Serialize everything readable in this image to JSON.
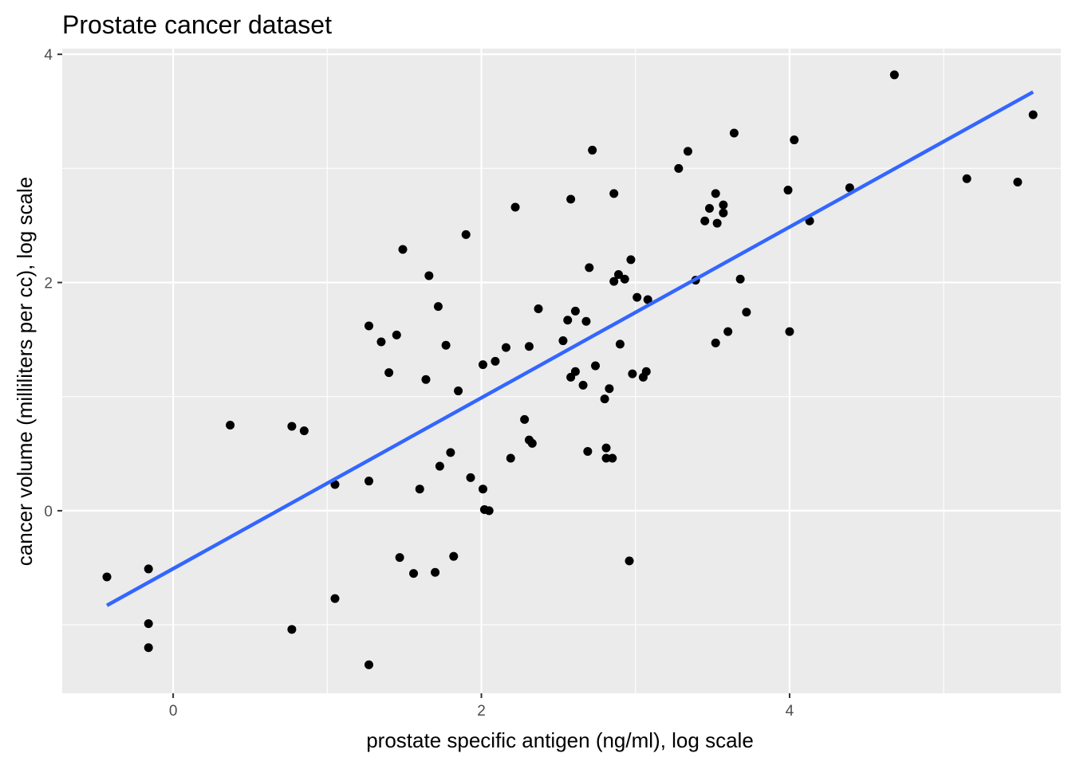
{
  "chart_data": {
    "type": "scatter",
    "title": "Prostate cancer dataset",
    "xlabel": "prostate specific antigen (ng/ml), log scale",
    "ylabel": "cancer volume (milliliters per cc), log scale",
    "xlim": [
      -0.72,
      5.76
    ],
    "ylim": [
      -1.6,
      4.05
    ],
    "x_ticks": [
      0,
      2,
      4
    ],
    "y_ticks": [
      0,
      2,
      4
    ],
    "x_minor": [
      1,
      3,
      5
    ],
    "y_minor": [
      -1,
      1,
      3
    ],
    "grid": true,
    "point_color": "#000000",
    "line_color": "#3366FF",
    "panel_bg": "#EBEBEB",
    "fit_line": {
      "x": [
        -0.43,
        5.58
      ],
      "y": [
        -0.83,
        3.67
      ]
    },
    "points": [
      [
        -0.43,
        -0.58
      ],
      [
        -0.16,
        -0.51
      ],
      [
        -0.16,
        -0.99
      ],
      [
        -0.16,
        -1.2
      ],
      [
        0.37,
        0.75
      ],
      [
        0.77,
        0.74
      ],
      [
        0.77,
        -1.04
      ],
      [
        0.85,
        0.7
      ],
      [
        1.05,
        0.23
      ],
      [
        1.05,
        -0.77
      ],
      [
        1.27,
        1.62
      ],
      [
        1.27,
        0.26
      ],
      [
        1.27,
        -1.35
      ],
      [
        1.35,
        1.48
      ],
      [
        1.4,
        1.21
      ],
      [
        1.45,
        1.54
      ],
      [
        1.47,
        -0.41
      ],
      [
        1.49,
        2.29
      ],
      [
        1.56,
        -0.55
      ],
      [
        1.6,
        0.19
      ],
      [
        1.64,
        1.15
      ],
      [
        1.66,
        2.06
      ],
      [
        1.7,
        -0.54
      ],
      [
        1.72,
        1.79
      ],
      [
        1.73,
        0.39
      ],
      [
        1.77,
        1.45
      ],
      [
        1.8,
        0.51
      ],
      [
        1.82,
        -0.4
      ],
      [
        1.85,
        1.05
      ],
      [
        1.9,
        2.42
      ],
      [
        1.93,
        0.29
      ],
      [
        2.01,
        1.28
      ],
      [
        2.01,
        0.19
      ],
      [
        2.02,
        0.01
      ],
      [
        2.05,
        0.0
      ],
      [
        2.09,
        1.31
      ],
      [
        2.16,
        1.43
      ],
      [
        2.19,
        0.46
      ],
      [
        2.22,
        2.66
      ],
      [
        2.28,
        0.8
      ],
      [
        2.31,
        1.44
      ],
      [
        2.31,
        0.62
      ],
      [
        2.33,
        0.59
      ],
      [
        2.37,
        1.77
      ],
      [
        2.53,
        1.49
      ],
      [
        2.56,
        1.67
      ],
      [
        2.58,
        2.73
      ],
      [
        2.58,
        1.17
      ],
      [
        2.61,
        1.22
      ],
      [
        2.61,
        1.75
      ],
      [
        2.66,
        1.1
      ],
      [
        2.68,
        1.66
      ],
      [
        2.69,
        0.52
      ],
      [
        2.7,
        2.13
      ],
      [
        2.72,
        3.16
      ],
      [
        2.74,
        1.27
      ],
      [
        2.8,
        0.98
      ],
      [
        2.81,
        0.46
      ],
      [
        2.81,
        0.55
      ],
      [
        2.83,
        1.07
      ],
      [
        2.85,
        0.46
      ],
      [
        2.86,
        2.01
      ],
      [
        2.86,
        2.78
      ],
      [
        2.89,
        2.07
      ],
      [
        2.9,
        1.46
      ],
      [
        2.93,
        2.03
      ],
      [
        2.96,
        -0.44
      ],
      [
        2.97,
        2.2
      ],
      [
        2.98,
        1.2
      ],
      [
        3.01,
        1.87
      ],
      [
        3.05,
        1.17
      ],
      [
        3.07,
        1.22
      ],
      [
        3.08,
        1.85
      ],
      [
        3.28,
        3.0
      ],
      [
        3.34,
        3.15
      ],
      [
        3.39,
        2.02
      ],
      [
        3.45,
        2.54
      ],
      [
        3.48,
        2.65
      ],
      [
        3.52,
        2.78
      ],
      [
        3.52,
        1.47
      ],
      [
        3.53,
        2.52
      ],
      [
        3.57,
        2.61
      ],
      [
        3.57,
        2.68
      ],
      [
        3.6,
        1.57
      ],
      [
        3.64,
        3.31
      ],
      [
        3.68,
        2.03
      ],
      [
        3.72,
        1.74
      ],
      [
        3.99,
        2.81
      ],
      [
        4.0,
        1.57
      ],
      [
        4.03,
        3.25
      ],
      [
        4.13,
        2.54
      ],
      [
        4.39,
        2.83
      ],
      [
        4.68,
        3.82
      ],
      [
        5.15,
        2.91
      ],
      [
        5.48,
        2.88
      ],
      [
        5.58,
        3.47
      ]
    ]
  }
}
